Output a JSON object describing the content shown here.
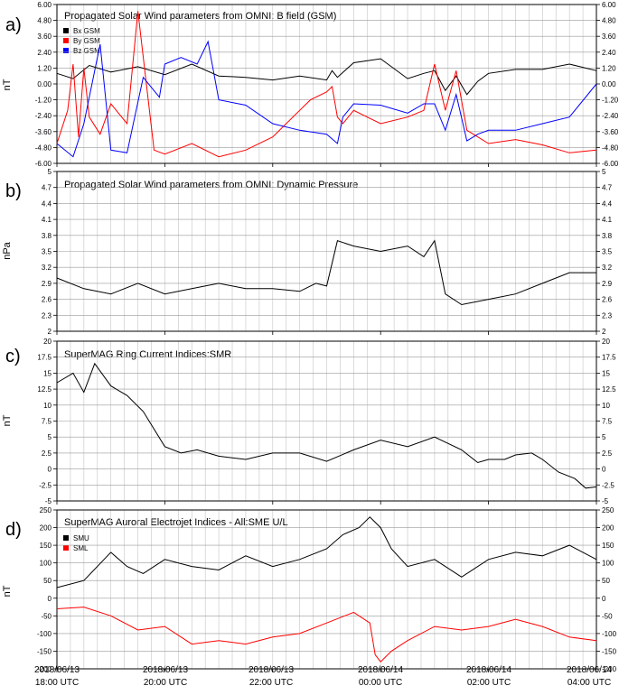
{
  "x_axis": {
    "tick_dates": [
      "2018/06/13",
      "2018/06/13",
      "2018/06/13",
      "2018/06/14",
      "2018/06/14",
      "2018/06/14"
    ],
    "tick_times": [
      "18:00 UTC",
      "20:00 UTC",
      "22:00 UTC",
      "00:00 UTC",
      "02:00 UTC",
      "04:00 UTC"
    ]
  },
  "chart_data": [
    {
      "type": "line",
      "panel_letter": "a)",
      "title": "Propagated Solar Wind parameters from OMNI: B field (GSM)",
      "ylabel": "nT",
      "ylim": [
        -6,
        6
      ],
      "yticks": [
        "-6.00",
        "-4.80",
        "-3.60",
        "-2.40",
        "-1.20",
        "0.00",
        "1.20",
        "2.40",
        "3.60",
        "4.80",
        "6.00"
      ],
      "x_unit": "hours since 2018/06/13 18:00 UTC",
      "legend": "top-left",
      "grid": true,
      "series": [
        {
          "name": "Bx GSM",
          "color": "#000000",
          "x": [
            0,
            0.3,
            0.6,
            1.0,
            1.5,
            2.0,
            2.5,
            3.0,
            3.5,
            4.0,
            4.5,
            5.0,
            5.1,
            5.2,
            5.5,
            6.0,
            6.5,
            6.8,
            7.0,
            7.2,
            7.4,
            7.6,
            7.8,
            8.0,
            8.5,
            9.0,
            9.5,
            10.0
          ],
          "values": [
            0.8,
            0.4,
            1.4,
            0.9,
            1.3,
            0.7,
            1.5,
            0.6,
            0.5,
            0.3,
            0.6,
            0.3,
            1.0,
            0.5,
            1.6,
            1.9,
            0.4,
            0.8,
            1.0,
            -0.5,
            0.6,
            -0.8,
            0.2,
            0.8,
            1.1,
            1.1,
            1.5,
            1.0
          ]
        },
        {
          "name": "By GSM",
          "color": "#ff0000",
          "x": [
            0,
            0.2,
            0.3,
            0.4,
            0.5,
            0.6,
            0.8,
            1.0,
            1.3,
            1.5,
            1.8,
            2.0,
            2.5,
            3.0,
            3.5,
            4.0,
            4.5,
            4.7,
            5.0,
            5.1,
            5.2,
            5.3,
            5.5,
            6.0,
            6.5,
            6.8,
            7.0,
            7.2,
            7.4,
            7.6,
            7.8,
            8.0,
            8.5,
            9.0,
            9.5,
            10.0
          ],
          "values": [
            -4.5,
            -2.0,
            1.5,
            -4.0,
            1.2,
            -2.5,
            -3.8,
            -1.5,
            -3.0,
            5.5,
            -5.0,
            -5.3,
            -4.5,
            -5.5,
            -5.0,
            -4.0,
            -2.0,
            -1.2,
            -0.6,
            -0.2,
            -2.5,
            -3.0,
            -2.0,
            -3.0,
            -2.5,
            -2.0,
            1.5,
            -2.0,
            1.0,
            -3.5,
            -4.0,
            -4.5,
            -4.2,
            -4.6,
            -5.2,
            -5.0
          ]
        },
        {
          "name": "Bz GSM",
          "color": "#0000ff",
          "x": [
            0,
            0.3,
            0.5,
            0.8,
            1.0,
            1.3,
            1.6,
            1.9,
            2.0,
            2.3,
            2.6,
            2.8,
            3.0,
            3.5,
            4.0,
            4.5,
            5.0,
            5.2,
            5.3,
            5.5,
            6.0,
            6.5,
            6.8,
            7.0,
            7.2,
            7.4,
            7.6,
            7.8,
            8.0,
            8.5,
            9.0,
            9.5,
            10.0
          ],
          "values": [
            -4.5,
            -5.5,
            -3.0,
            3.0,
            -5.0,
            -5.2,
            0.5,
            -1.0,
            1.5,
            2.0,
            1.5,
            3.2,
            -1.2,
            -1.6,
            -3.0,
            -3.5,
            -3.8,
            -4.5,
            -2.5,
            -1.5,
            -1.6,
            -2.2,
            -1.5,
            -1.5,
            -3.5,
            -0.8,
            -4.3,
            -3.8,
            -3.5,
            -3.5,
            -3.0,
            -2.5,
            0.0
          ]
        }
      ]
    },
    {
      "type": "line",
      "panel_letter": "b)",
      "title": "Propagated Solar Wind parameters from OMNI: Dynamic Pressure",
      "ylabel": "nPa",
      "ylim": [
        2,
        5
      ],
      "yticks": [
        "2",
        "2.3",
        "2.6",
        "2.9",
        "3.2",
        "3.5",
        "3.8",
        "4.1",
        "4.4",
        "4.7",
        "5"
      ],
      "x_unit": "hours since 2018/06/13 18:00 UTC",
      "grid": true,
      "series": [
        {
          "name": "",
          "color": "#000000",
          "x": [
            0,
            0.5,
            1.0,
            1.5,
            2.0,
            2.5,
            3.0,
            3.5,
            4.0,
            4.5,
            4.8,
            5.0,
            5.2,
            5.5,
            6.0,
            6.5,
            6.8,
            7.0,
            7.2,
            7.5,
            8.0,
            8.5,
            9.0,
            9.5,
            10.0
          ],
          "values": [
            3.0,
            2.8,
            2.7,
            2.9,
            2.7,
            2.8,
            2.9,
            2.8,
            2.8,
            2.75,
            2.9,
            2.85,
            3.7,
            3.6,
            3.5,
            3.6,
            3.4,
            3.7,
            2.7,
            2.5,
            2.6,
            2.7,
            2.9,
            3.1,
            3.1
          ]
        }
      ]
    },
    {
      "type": "line",
      "panel_letter": "c)",
      "title": "SuperMAG Ring Current Indices:SMR",
      "ylabel": "nT",
      "ylim": [
        -5,
        20
      ],
      "yticks": [
        "-5",
        "-2.5",
        "0",
        "2.5",
        "5",
        "7.5",
        "10",
        "12.5",
        "15",
        "17.5",
        "20"
      ],
      "x_unit": "hours since 2018/06/13 18:00 UTC",
      "grid": true,
      "series": [
        {
          "name": "",
          "color": "#000000",
          "x": [
            0,
            0.3,
            0.5,
            0.7,
            1.0,
            1.3,
            1.6,
            2.0,
            2.3,
            2.6,
            3.0,
            3.5,
            4.0,
            4.5,
            5.0,
            5.5,
            6.0,
            6.5,
            7.0,
            7.5,
            7.8,
            8.0,
            8.3,
            8.5,
            8.8,
            9.0,
            9.3,
            9.6,
            9.8,
            10.0
          ],
          "values": [
            13.5,
            15.0,
            12.0,
            16.5,
            13.0,
            11.5,
            9.0,
            3.5,
            2.5,
            3.0,
            2.0,
            1.5,
            2.5,
            2.5,
            1.2,
            3.0,
            4.5,
            3.5,
            5.0,
            3.0,
            1.0,
            1.5,
            1.5,
            2.2,
            2.5,
            1.5,
            -0.5,
            -1.5,
            -3.0,
            -2.8
          ]
        }
      ]
    },
    {
      "type": "line",
      "panel_letter": "d)",
      "title": "SuperMAG Auroral Electrojet Indices - All:SME U/L",
      "ylabel": "nT",
      "ylim": [
        -200,
        250
      ],
      "yticks": [
        "-200",
        "-150",
        "-100",
        "-50",
        "0",
        "50",
        "100",
        "150",
        "200",
        "250"
      ],
      "x_unit": "hours since 2018/06/13 18:00 UTC",
      "legend": "top-left",
      "grid": true,
      "series": [
        {
          "name": "SMU",
          "color": "#000000",
          "x": [
            0,
            0.5,
            1.0,
            1.3,
            1.6,
            2.0,
            2.5,
            3.0,
            3.5,
            4.0,
            4.5,
            5.0,
            5.3,
            5.6,
            5.8,
            6.0,
            6.2,
            6.5,
            7.0,
            7.5,
            8.0,
            8.5,
            9.0,
            9.5,
            10.0
          ],
          "values": [
            30,
            50,
            130,
            90,
            70,
            110,
            90,
            80,
            120,
            90,
            110,
            140,
            180,
            200,
            230,
            200,
            140,
            90,
            110,
            60,
            110,
            130,
            120,
            150,
            110
          ]
        },
        {
          "name": "SML",
          "color": "#ff0000",
          "x": [
            0,
            0.5,
            1.0,
            1.5,
            2.0,
            2.5,
            3.0,
            3.5,
            4.0,
            4.5,
            5.0,
            5.5,
            5.8,
            5.9,
            6.0,
            6.2,
            6.5,
            7.0,
            7.5,
            8.0,
            8.5,
            9.0,
            9.5,
            10.0
          ],
          "values": [
            -30,
            -25,
            -50,
            -90,
            -80,
            -130,
            -120,
            -130,
            -110,
            -100,
            -70,
            -40,
            -70,
            -160,
            -180,
            -150,
            -120,
            -80,
            -90,
            -80,
            -60,
            -80,
            -110,
            -120
          ]
        }
      ]
    }
  ]
}
